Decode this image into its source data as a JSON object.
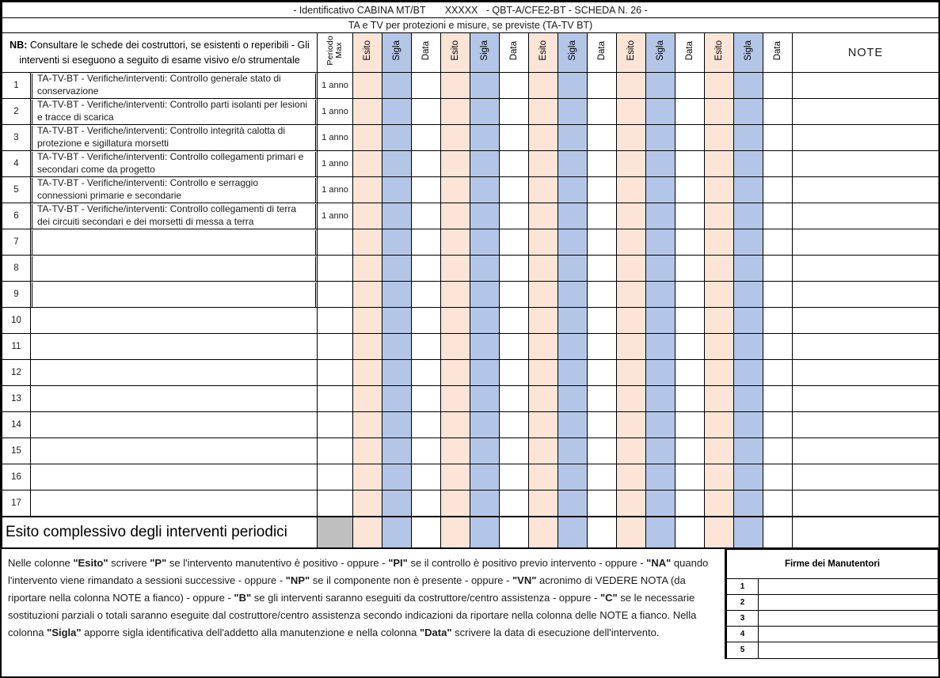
{
  "document": {
    "title_line1": "- Identificativo CABINA MT/BT       XXXXX   - QBT-A/CFE2-BT - SCHEDA N. 26 -",
    "title_line2": "TA e TV per protezioni e misure, se previste (TA-TV BT)"
  },
  "table": {
    "nb_label": "NB:",
    "nb_text": " Consultare le schede dei costruttori, se esistenti o reperibili - Gli interventi si eseguono a seguito di esame visivo e/o strumentale",
    "periodo_header": [
      "Periodo",
      "Max"
    ],
    "repeat_groups": 5,
    "group_columns": [
      "Esito",
      "Sigla",
      "Data"
    ],
    "note_header": "NOTE",
    "rows": [
      {
        "num": "1",
        "desc": "TA-TV-BT - Verifiche/interventi: Controllo generale stato di conservazione",
        "period": "1 anno"
      },
      {
        "num": "2",
        "desc": "TA-TV-BT - Verifiche/interventi: Controllo parti isolanti per lesioni e tracce di scarica",
        "period": "1 anno"
      },
      {
        "num": "3",
        "desc": "TA-TV-BT - Verifiche/interventi: Controllo integrità calotta di protezione e sigillatura morsetti",
        "period": "1 anno"
      },
      {
        "num": "4",
        "desc": "TA-TV-BT - Verifiche/interventi: Controllo collegamenti primari e secondari come da progetto",
        "period": "1 anno"
      },
      {
        "num": "5",
        "desc": "TA-TV-BT - Verifiche/interventi: Controllo e serraggio connessioni primarie e secondarie",
        "period": "1 anno"
      },
      {
        "num": "6",
        "desc": "TA-TV-BT - Verifiche/interventi: Controllo collegamenti di terra dei circuiti secondari e dei morsetti di messa a terra",
        "period": "1 anno"
      },
      {
        "num": "7",
        "desc": "",
        "period": ""
      },
      {
        "num": "8",
        "desc": "",
        "period": ""
      },
      {
        "num": "9",
        "desc": "",
        "period": ""
      },
      {
        "num": "10",
        "desc": "",
        "period": ""
      },
      {
        "num": "11",
        "desc": "",
        "period": ""
      },
      {
        "num": "12",
        "desc": "",
        "period": ""
      },
      {
        "num": "13",
        "desc": "",
        "period": ""
      },
      {
        "num": "14",
        "desc": "",
        "period": ""
      },
      {
        "num": "15",
        "desc": "",
        "period": ""
      },
      {
        "num": "16",
        "desc": "",
        "period": ""
      },
      {
        "num": "17",
        "desc": "",
        "period": ""
      }
    ],
    "summary_label": "Esito complessivo degli interventi periodici"
  },
  "footer": {
    "instructions": [
      {
        "t": "Nelle colonne "
      },
      {
        "t": "\"Esito\"",
        "b": true
      },
      {
        "t": " scrivere "
      },
      {
        "t": "\"P\"",
        "b": true
      },
      {
        "t": " se l'intervento manutentivo è positivo - oppure - "
      },
      {
        "t": "\"PI\"",
        "b": true
      },
      {
        "t": " se il controllo  è positivo  previo intervento - oppure - "
      },
      {
        "t": "\"NA\"",
        "b": true
      },
      {
        "t": " quando l'intervento viene rimandato a sessioni successive - oppure - "
      },
      {
        "t": "\"NP\"",
        "b": true
      },
      {
        "t": "  se il componente non è presente - oppure - "
      },
      {
        "t": "\"VN\"",
        "b": true
      },
      {
        "t": " acronimo di VEDERE NOTA (da riportare nella colonna NOTE a fianco) - oppure - "
      },
      {
        "t": "\"B\"",
        "b": true
      },
      {
        "t": " se gli interventi saranno eseguiti da costruttore/centro assistenza - oppure - "
      },
      {
        "t": "\"C\"",
        "b": true
      },
      {
        "t": " se le necessarie sostituzioni parziali o totali saranno eseguite dal costruttore/centro assistenza secondo indicazioni da riportare nella colonna delle NOTE a fianco. Nella colonna "
      },
      {
        "t": "\"Sigla\"",
        "b": true
      },
      {
        "t": " apporre sigla identificativa dell'addetto alla manutenzione e nella colonna "
      },
      {
        "t": "\"Data\"",
        "b": true
      },
      {
        "t": " scrivere la data di esecuzione dell'intervento."
      }
    ],
    "firme": {
      "title": "Firme dei Manutentori",
      "row_numbers": [
        "1",
        "2",
        "3",
        "4",
        "5"
      ]
    }
  },
  "colors": {
    "esito_bg": "#FCE4D6",
    "sigla_bg": "#B4C6E7",
    "data_bg": "#FFFFFF",
    "summary_period_bg": "#BFBFBF"
  }
}
